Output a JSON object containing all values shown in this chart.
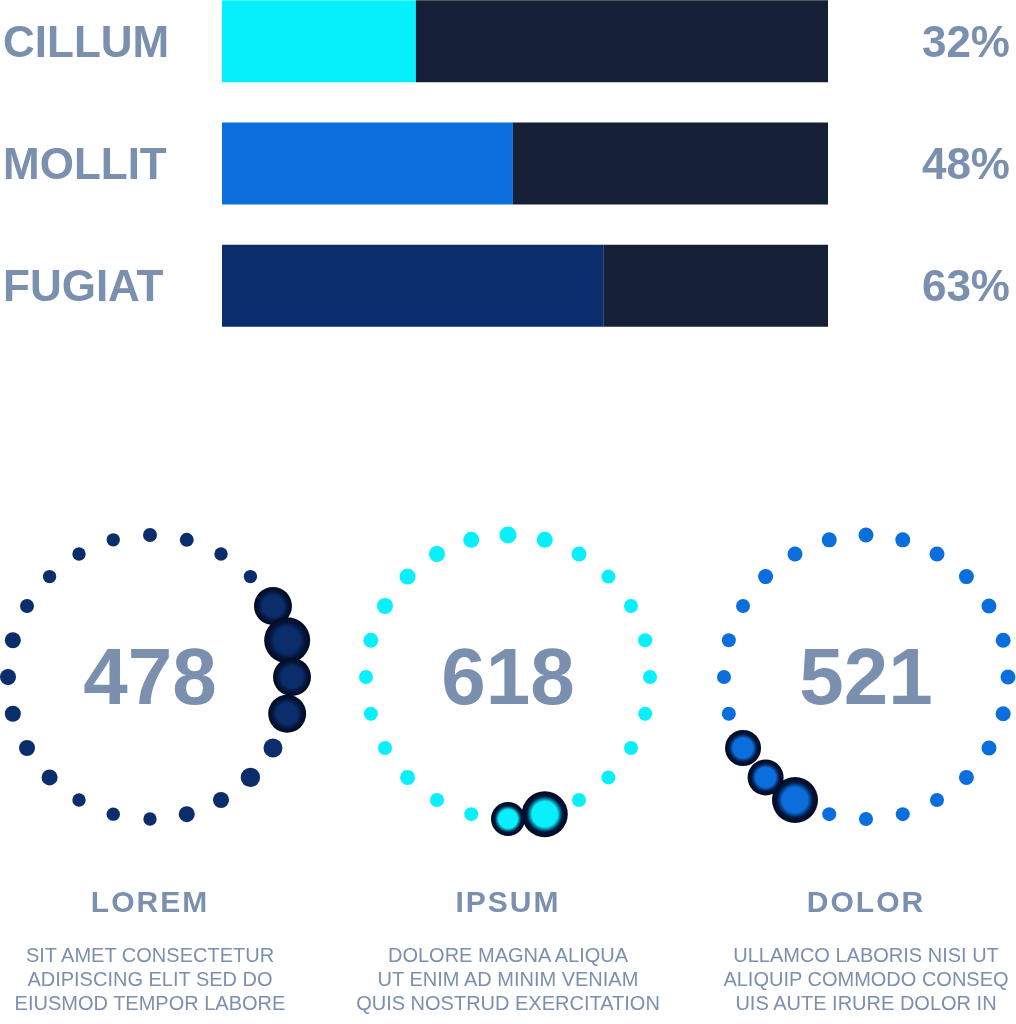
{
  "chart_data": [
    {
      "type": "bar",
      "orientation": "horizontal",
      "stacked": true,
      "categories": [
        "CILLUM",
        "MOLLIT",
        "FUGIAT"
      ],
      "series": [
        {
          "colors": [
            "#05f0fa",
            "#0a6fdc",
            "#0c2d6b"
          ],
          "values": [
            32,
            48,
            63
          ],
          "value_labels": [
            "32%",
            "48%",
            "63%"
          ]
        },
        {
          "color": "#151f35",
          "values": [
            68,
            52,
            37
          ]
        }
      ],
      "xlim": [
        0,
        100
      ],
      "tick_labels": "y"
    },
    {
      "type": "other",
      "categories": [
        "LOREM",
        "IPSUM",
        "DOLOR"
      ],
      "values": [
        478,
        618,
        521
      ],
      "data_labels": true,
      "colors": [
        "#0c2d6b",
        "#08f0fc",
        "#0a6fdc"
      ],
      "annotations": [
        "SIT AMET CONSECTETUR\nADIPISCING ELIT SED DO\nEIUSMOD TEMPOR LABORE",
        "DOLORE MAGNA ALIQUA\nUT ENIM AD MINIM VENIAM\nQUIS NOSTRUD EXERCITATION",
        "ULLAMCO LABORIS NISI UT\nALIQUIP COMMODO CONSEQ\nUIS AUTE IRURE DOLOR IN"
      ]
    }
  ]
}
